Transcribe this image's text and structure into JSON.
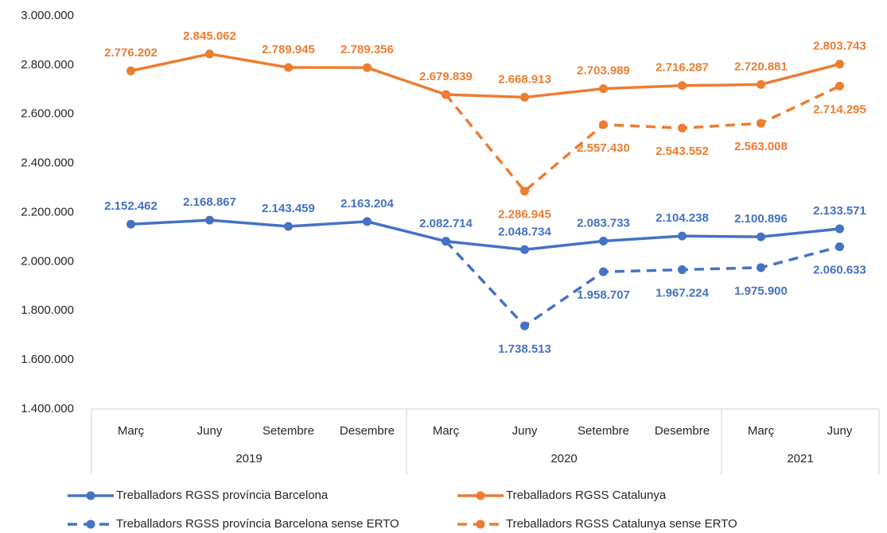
{
  "chart_data": {
    "type": "line",
    "categories": [
      "Març",
      "Juny",
      "Setembre",
      "Desembre",
      "Març",
      "Juny",
      "Setembre",
      "Desembre",
      "Març",
      "Juny"
    ],
    "groups": [
      {
        "label": "2019",
        "span": 4
      },
      {
        "label": "2020",
        "span": 4
      },
      {
        "label": "2021",
        "span": 2
      }
    ],
    "ylim": [
      1400000,
      3000000
    ],
    "yticks": [
      {
        "value": 1400000,
        "label": "1.400.000"
      },
      {
        "value": 1600000,
        "label": "1.600.000"
      },
      {
        "value": 1800000,
        "label": "1.800.000"
      },
      {
        "value": 2000000,
        "label": "2.000.000"
      },
      {
        "value": 2200000,
        "label": "2.200.000"
      },
      {
        "value": 2400000,
        "label": "2.400.000"
      },
      {
        "value": 2600000,
        "label": "2.600.000"
      },
      {
        "value": 2800000,
        "label": "2.800.000"
      },
      {
        "value": 3000000,
        "label": "3.000.000"
      }
    ],
    "series": [
      {
        "name": "Treballadors RGSS província Barcelona",
        "color": "#4472c4",
        "dash": false,
        "values": [
          2152462,
          2168867,
          2143459,
          2163204,
          2082714,
          2048734,
          2083733,
          2104238,
          2100896,
          2133571
        ],
        "value_labels": [
          "2.152.462",
          "2.168.867",
          "2.143.459",
          "2.163.204",
          "2.082.714",
          "2.048.734",
          "2.083.733",
          "2.104.238",
          "2.100.896",
          "2.133.571"
        ]
      },
      {
        "name": "Treballadors RGSS Catalunya",
        "color": "#ed7d31",
        "dash": false,
        "values": [
          2776202,
          2845062,
          2789945,
          2789356,
          2679839,
          2668913,
          2703989,
          2716287,
          2720881,
          2803743
        ],
        "value_labels": [
          "2.776.202",
          "2.845.062",
          "2.789.945",
          "2.789.356",
          "2.679.839",
          "2.668.913",
          "2.703.989",
          "2.716.287",
          "2.720.881",
          "2.803.743"
        ]
      },
      {
        "name": "Treballadors RGSS província Barcelona sense ERTO",
        "color": "#4472c4",
        "dash": true,
        "values": [
          null,
          null,
          null,
          null,
          2082714,
          1738513,
          1958707,
          1967224,
          1975900,
          2060633
        ],
        "value_labels": [
          null,
          null,
          null,
          null,
          null,
          "1.738.513",
          "1.958.707",
          "1.967.224",
          "1.975.900",
          "2.060.633"
        ]
      },
      {
        "name": "Treballadors RGSS Catalunya sense ERTO",
        "color": "#ed7d31",
        "dash": true,
        "values": [
          null,
          null,
          null,
          null,
          2679839,
          2286945,
          2557430,
          2543552,
          2563008,
          2714295
        ],
        "value_labels": [
          null,
          null,
          null,
          null,
          null,
          "2.286.945",
          "2.557.430",
          "2.543.552",
          "2.563.008",
          "2.714.295"
        ]
      }
    ]
  }
}
